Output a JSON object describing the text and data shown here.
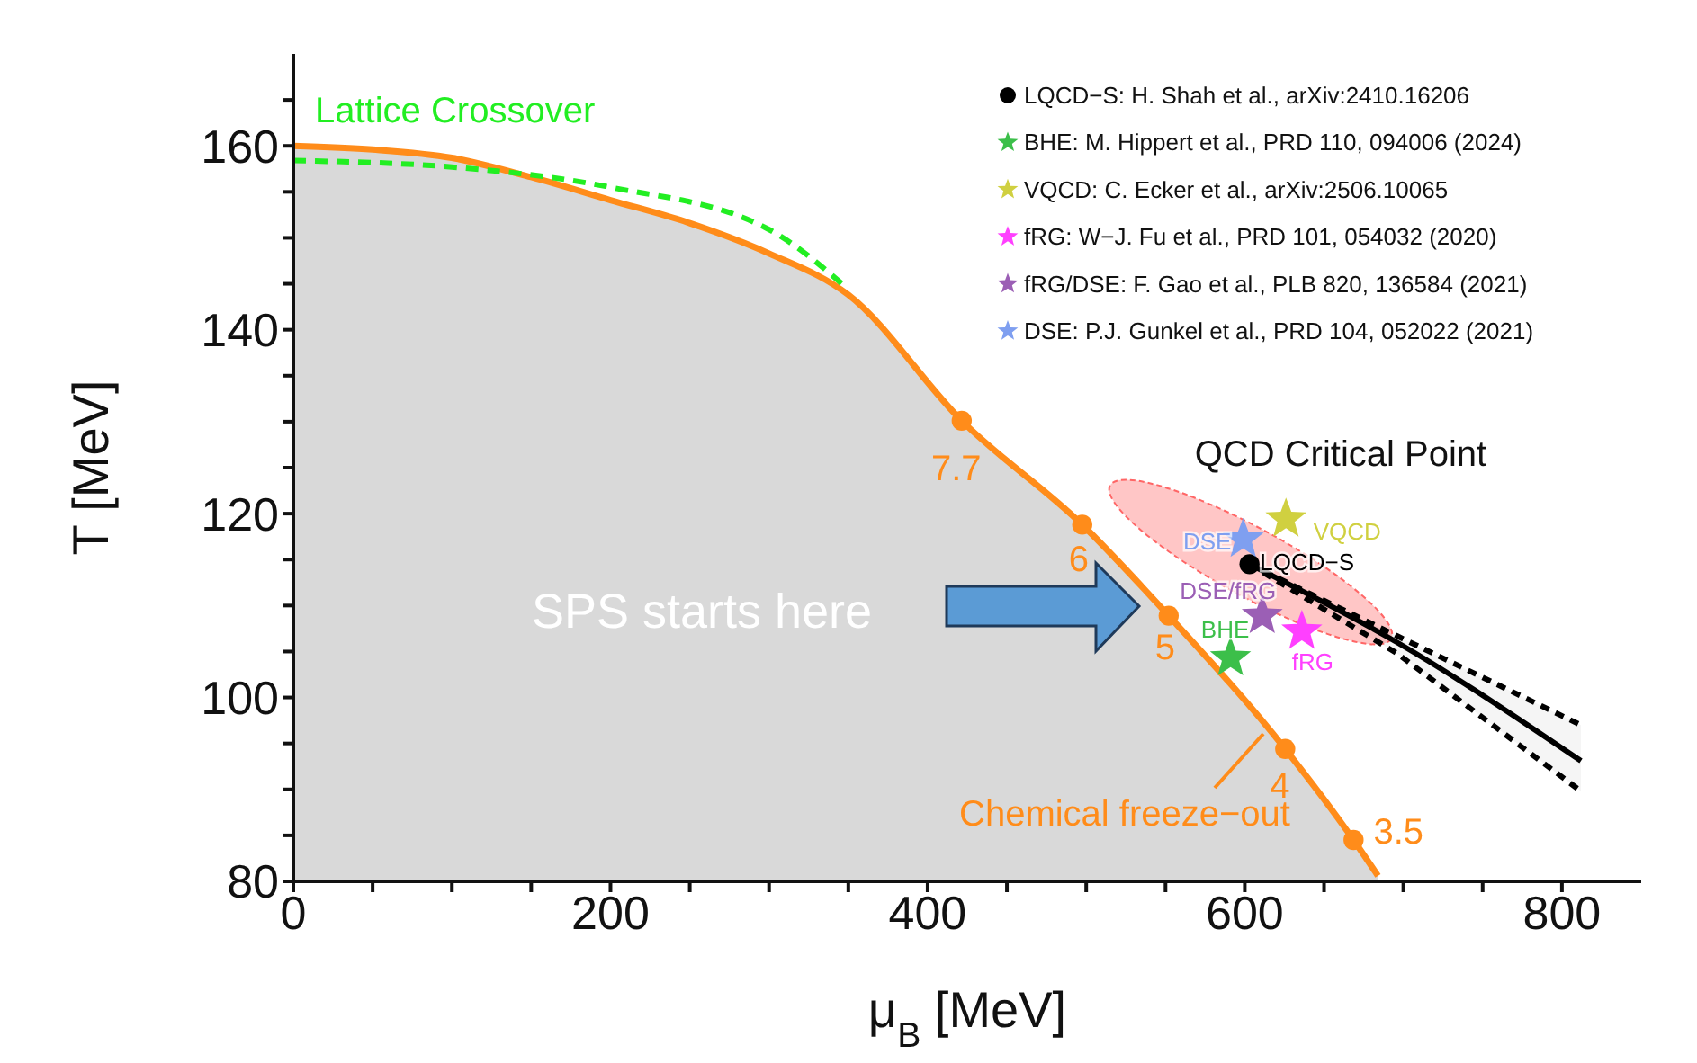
{
  "chart_data": {
    "type": "line",
    "xlabel": "μ$_{B}$ [MeV]",
    "ylabel": "T [MeV]",
    "xlim": [
      0,
      850
    ],
    "xticks": [
      0,
      {
        "value": 50,
        "label": null
      },
      {
        "value": 100,
        "label": null
      },
      {
        "value": 150,
        "label": null
      },
      200,
      {
        "value": 250,
        "label": null
      },
      {
        "value": 300,
        "label": null
      },
      {
        "value": 350,
        "label": null
      },
      400,
      {
        "value": 450,
        "label": null
      },
      {
        "value": 500,
        "label": null
      },
      {
        "value": 550,
        "label": null
      },
      600,
      {
        "value": 650,
        "label": null
      },
      {
        "value": 700,
        "label": null
      },
      {
        "value": 750,
        "label": null
      },
      800
    ],
    "ylim": [
      80,
      170
    ],
    "yticks": [
      80,
      {
        "value": 85,
        "label": null
      },
      {
        "value": 90,
        "label": null
      },
      {
        "value": 95,
        "label": null
      },
      100,
      {
        "value": 105,
        "label": null
      },
      {
        "value": 110,
        "label": null
      },
      {
        "value": 115,
        "label": null
      },
      120,
      {
        "value": 125,
        "label": null
      },
      {
        "value": 130,
        "label": null
      },
      {
        "value": 135,
        "label": null
      },
      140,
      {
        "value": 145,
        "label": null
      },
      {
        "value": 150,
        "label": null
      },
      {
        "value": 155,
        "label": null
      },
      160,
      {
        "value": 165,
        "label": null
      }
    ],
    "grid": false,
    "legend": "top right",
    "series": [
      {
        "name": "LQCD−S: H. Shah et al., arXiv:2410.16206",
        "type": "scatter",
        "marker": "circle",
        "color": "#000000",
        "x": [
          603
        ],
        "values": [
          114.5
        ]
      },
      {
        "marker": "none",
        "color": "#000000",
        "x": [
          603,
          696,
          812
        ],
        "values": [
          114.5,
          106,
          93.1
        ],
        "lower": [
          114.5,
          104.8,
          89.8
        ],
        "upper": [
          114.5,
          106.7,
          97
        ]
      },
      {
        "name": "BHE: M. Hippert et al., PRD 110, 094006 (2024)",
        "type": "scatter",
        "marker": "star",
        "color": "#3cbf4a",
        "x": [
          591
        ],
        "values": [
          104.3
        ]
      },
      {
        "name": "VQCD: C. Ecker et al., arXiv:2506.10065",
        "type": "scatter",
        "marker": "star",
        "color": "#d0d040",
        "x": [
          626
        ],
        "values": [
          119.4
        ]
      },
      {
        "name": "fRG: W−J. Fu et al., PRD 101, 054032 (2020)",
        "type": "scatter",
        "marker": "star",
        "color": "#ff40ff",
        "x": [
          636
        ],
        "values": [
          107.2
        ]
      },
      {
        "name": "fRG/DSE: F. Gao et al., PLB 820, 136584 (2021)",
        "type": "scatter",
        "marker": "star",
        "color": "#9b5fb5",
        "x": [
          611
        ],
        "values": [
          108.9
        ]
      },
      {
        "name": "DSE: P.J. Gunkel et al., PRD 104, 052022 (2021)",
        "type": "scatter",
        "marker": "star",
        "color": "#7f9ff0",
        "x": [
          599
        ],
        "values": [
          117.2
        ]
      },
      {
        "name": "Lattice Crossover",
        "marker": "none",
        "line_style": "dashed",
        "color": "#22ee22",
        "x": [
          0,
          100,
          200,
          300,
          350
        ],
        "values": [
          158.4,
          157.7,
          155.5,
          150.9,
          144.4
        ]
      },
      {
        "name": "Chemical freeze−out",
        "type": "area",
        "marker": "none",
        "color": "#ff8c1a",
        "x": [
          0,
          50,
          100,
          150,
          200,
          250,
          300,
          350,
          421.5,
          497.5,
          552,
          625.5,
          668.6,
          684
        ],
        "values": [
          160,
          159.6,
          158.7,
          156.6,
          154.1,
          151.6,
          148.3,
          143.8,
          130.1,
          118.8,
          108.9,
          94.4,
          84.5,
          80.6
        ]
      },
      {
        "type": "scatter",
        "marker": "circle",
        "color": "#ff8c1a",
        "x": [
          421.5,
          497.5,
          552,
          625.5,
          668.6
        ],
        "values": [
          130.1,
          118.8,
          108.9,
          94.4,
          84.5
        ]
      }
    ],
    "annotations": [
      "QCD Critical Point",
      "SPS starts here",
      {
        "text": "DSE",
        "x": 599,
        "y": 117.2
      },
      {
        "text": "VQCD",
        "x": 626,
        "y": 119.4
      },
      {
        "text": "LQCD−S",
        "x": 603,
        "y": 114.5
      },
      {
        "text": "DSE/fRG",
        "x": 611,
        "y": 108.9
      },
      {
        "text": "BHE",
        "x": 591,
        "y": 104.3
      },
      {
        "text": "fRG",
        "x": 636,
        "y": 107.2
      },
      {
        "text": "7.7",
        "x": 421.5,
        "y": 130.1
      },
      {
        "text": "6",
        "x": 497.5,
        "y": 118.8
      },
      {
        "text": "5",
        "x": 552,
        "y": 108.9
      },
      {
        "text": "4",
        "x": 625.5,
        "y": 94.4
      },
      {
        "text": "3.5",
        "x": 668.6,
        "y": 84.5
      }
    ]
  }
}
